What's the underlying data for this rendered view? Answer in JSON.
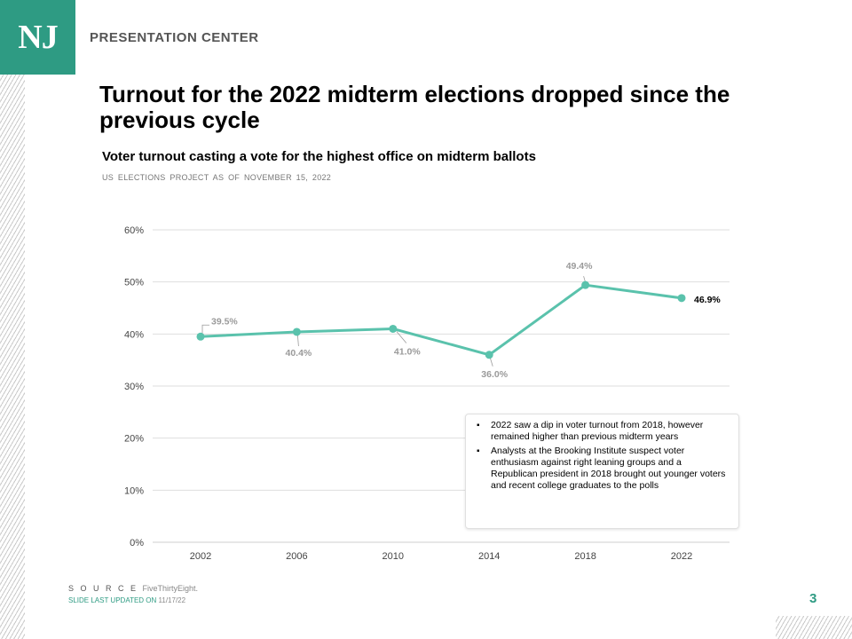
{
  "header": {
    "logo_text": "NJ",
    "brand": "PRESENTATION CENTER"
  },
  "slide": {
    "title": "Turnout for the 2022 midterm elections dropped since the previous cycle",
    "subtitle": "Voter turnout casting a vote for the highest office on midterm ballots",
    "source_line": "US ELECTIONS PROJECT AS OF NOVEMBER 15, 2022"
  },
  "chart_data": {
    "type": "line",
    "title": "Voter turnout casting a vote for the highest office on midterm ballots",
    "categories": [
      "2002",
      "2006",
      "2010",
      "2014",
      "2018",
      "2022"
    ],
    "series": [
      {
        "values": [
          39.5,
          40.4,
          41.0,
          36.0,
          49.4,
          46.9
        ]
      }
    ],
    "data_labels": [
      "39.5%",
      "40.4%",
      "41.0%",
      "36.0%",
      "49.4%",
      "46.9%"
    ],
    "yticks": [
      "0%",
      "10%",
      "20%",
      "30%",
      "40%",
      "50%",
      "60%"
    ],
    "ylim": [
      0,
      60
    ],
    "grid": true,
    "line_color": "#5ac2ac",
    "highlight_label_index": 5
  },
  "notes": [
    "2022 saw a dip in voter turnout from 2018, however remained higher than previous midterm years",
    "Analysts at the Brooking Institute suspect voter enthusiasm against right leaning groups and a Republican president in 2018 brought out younger voters and recent college graduates to the polls"
  ],
  "footer": {
    "source_label": "S O U R C E",
    "source_value": "FiveThirtyEight.",
    "updated_label": "SLIDE LAST UPDATED ON",
    "updated_value": "11/17/22",
    "page_number": "3"
  },
  "colors": {
    "brand": "#2e9b83",
    "line": "#5ac2ac"
  }
}
